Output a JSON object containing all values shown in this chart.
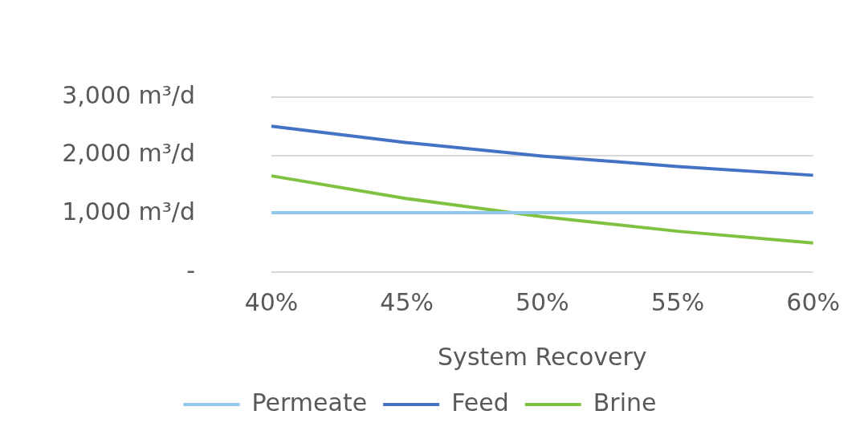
{
  "chart_data": {
    "type": "line",
    "xlabel": "System Recovery",
    "categories": [
      "40%",
      "45%",
      "50%",
      "55%",
      "60%"
    ],
    "series": [
      {
        "name": "Permeate",
        "color": "#8fc8ea",
        "values": [
          1020,
          1020,
          1020,
          1020,
          1020
        ]
      },
      {
        "name": "Feed",
        "color": "#4472c4",
        "values": [
          2500,
          2220,
          1990,
          1810,
          1660
        ]
      },
      {
        "name": "Brine",
        "color": "#7fc241",
        "values": [
          1650,
          1260,
          950,
          700,
          500
        ]
      }
    ],
    "ylim": [
      0,
      3000
    ],
    "yticks": [
      {
        "value": 0,
        "label": "-"
      },
      {
        "value": 1000,
        "label": "1,000 m³/d"
      },
      {
        "value": 2000,
        "label": "2,000 m³/d"
      },
      {
        "value": 3000,
        "label": "3,000 m³/d"
      }
    ],
    "grid": "y",
    "legend": "bottom",
    "marker": "none",
    "line_style": "solid"
  }
}
